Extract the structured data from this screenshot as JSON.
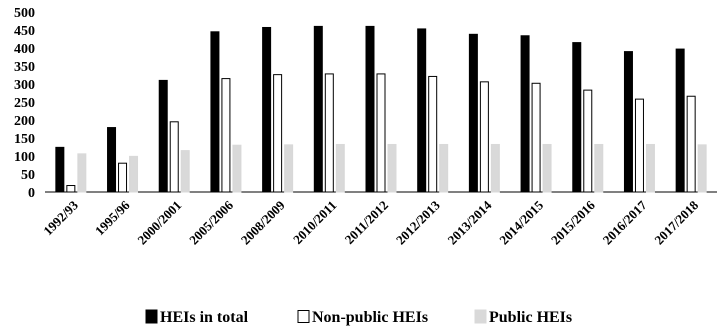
{
  "chart_data": {
    "type": "bar",
    "categories": [
      "1992/93",
      "1995/96",
      "2000/2001",
      "2005/2006",
      "2008/2009",
      "2010/2011",
      "2011/2012",
      "2012/2013",
      "2013/2014",
      "2014/2015",
      "2015/2016",
      "2016/2017",
      "2017/2018"
    ],
    "series": [
      {
        "name": "HEIs in total",
        "values": [
          124,
          179,
          310,
          445,
          457,
          460,
          460,
          453,
          438,
          434,
          415,
          390,
          397
        ],
        "color": "#000000",
        "stroke": "#000000"
      },
      {
        "name": "Non-public HEIs",
        "values": [
          18,
          80,
          195,
          315,
          326,
          328,
          328,
          321,
          306,
          302,
          283,
          258,
          266
        ],
        "color": "#ffffff",
        "stroke": "#000000"
      },
      {
        "name": "Public HEIs",
        "values": [
          106,
          99,
          115,
          130,
          131,
          132,
          132,
          132,
          132,
          132,
          132,
          132,
          131
        ],
        "color": "#d9d9d9",
        "stroke": "#d9d9d9"
      }
    ],
    "ylim": [
      0,
      500
    ],
    "yticks": [
      0,
      50,
      100,
      150,
      200,
      250,
      300,
      350,
      400,
      450,
      500
    ],
    "grid": false,
    "legend_position": "bottom"
  }
}
